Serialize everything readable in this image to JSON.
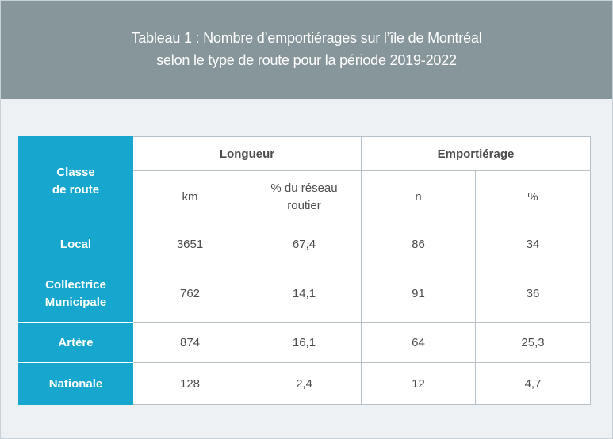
{
  "header": {
    "title_line1": "Tableau 1 : Nombre d’emportiérages sur l’île de Montréal",
    "title_line2": "selon le type de route pour la période 2019-2022"
  },
  "table": {
    "corner_header": {
      "line1": "Classe",
      "line2": "de route"
    },
    "group_headers": [
      "Longueur",
      "Emportiérage"
    ],
    "sub_headers": [
      {
        "line1": "km"
      },
      {
        "line1": "% du réseau",
        "line2": "routier"
      },
      {
        "line1": "n"
      },
      {
        "line1": "%"
      }
    ],
    "rows": [
      {
        "label": [
          "Local"
        ],
        "cells": [
          "3651",
          "67,4",
          "86",
          "34"
        ]
      },
      {
        "label": [
          "Collectrice",
          "Municipale"
        ],
        "cells": [
          "762",
          "14,1",
          "91",
          "36"
        ]
      },
      {
        "label": [
          "Artère"
        ],
        "cells": [
          "874",
          "16,1",
          "64",
          "25,3"
        ]
      },
      {
        "label": [
          "Nationale"
        ],
        "cells": [
          "128",
          "2,4",
          "12",
          "4,7"
        ]
      }
    ]
  }
}
